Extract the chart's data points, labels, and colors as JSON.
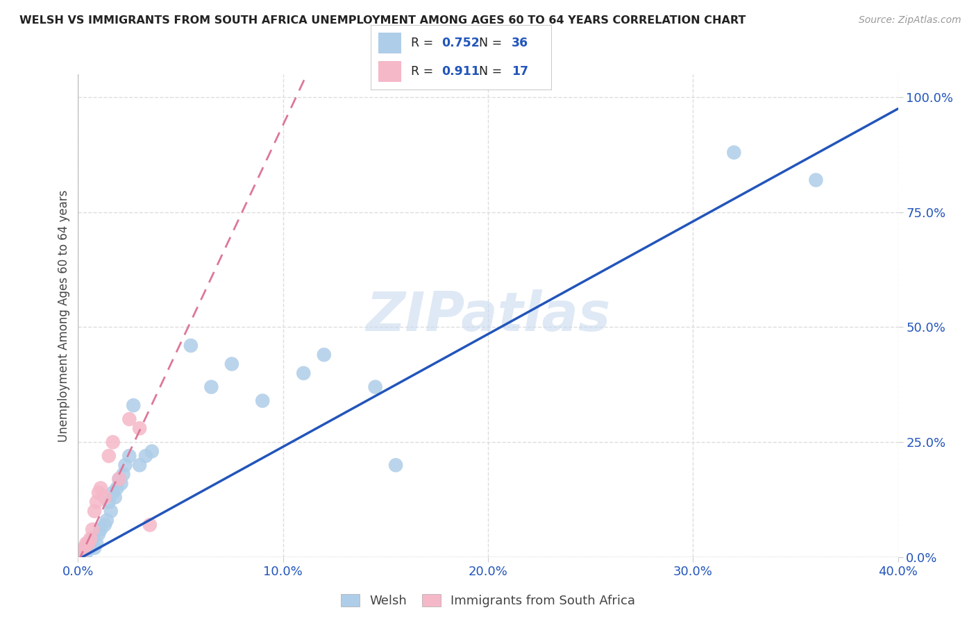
{
  "title": "WELSH VS IMMIGRANTS FROM SOUTH AFRICA UNEMPLOYMENT AMONG AGES 60 TO 64 YEARS CORRELATION CHART",
  "source": "Source: ZipAtlas.com",
  "ylabel": "Unemployment Among Ages 60 to 64 years",
  "xlim": [
    0.0,
    0.4
  ],
  "ylim": [
    0.0,
    1.05
  ],
  "xticklabels": [
    "0.0%",
    "10.0%",
    "20.0%",
    "30.0%",
    "40.0%"
  ],
  "yticklabels": [
    "0.0%",
    "25.0%",
    "50.0%",
    "75.0%",
    "100.0%"
  ],
  "ytick_vals": [
    0.0,
    0.25,
    0.5,
    0.75,
    1.0
  ],
  "xtick_vals": [
    0.0,
    0.1,
    0.2,
    0.3,
    0.4
  ],
  "welsh_R": "0.752",
  "welsh_N": "36",
  "sa_R": "0.911",
  "sa_N": "17",
  "welsh_color": "#aecde8",
  "sa_color": "#f5b8c8",
  "welsh_line_color": "#2255bb",
  "sa_line_color": "#dd7799",
  "watermark": "ZIPatlas",
  "welsh_points_x": [
    0.002,
    0.003,
    0.004,
    0.005,
    0.006,
    0.007,
    0.008,
    0.009,
    0.01,
    0.011,
    0.013,
    0.014,
    0.015,
    0.016,
    0.017,
    0.018,
    0.019,
    0.02,
    0.021,
    0.022,
    0.023,
    0.025,
    0.027,
    0.03,
    0.033,
    0.036,
    0.055,
    0.065,
    0.075,
    0.09,
    0.11,
    0.12,
    0.145,
    0.155,
    0.32,
    0.36
  ],
  "welsh_points_y": [
    0.01,
    0.02,
    0.01,
    0.03,
    0.02,
    0.04,
    0.02,
    0.03,
    0.05,
    0.06,
    0.07,
    0.08,
    0.12,
    0.1,
    0.14,
    0.13,
    0.15,
    0.17,
    0.16,
    0.18,
    0.2,
    0.22,
    0.33,
    0.2,
    0.22,
    0.23,
    0.46,
    0.37,
    0.42,
    0.34,
    0.4,
    0.44,
    0.37,
    0.2,
    0.88,
    0.82
  ],
  "sa_points_x": [
    0.002,
    0.003,
    0.004,
    0.005,
    0.006,
    0.007,
    0.008,
    0.009,
    0.01,
    0.011,
    0.013,
    0.015,
    0.017,
    0.02,
    0.025,
    0.03,
    0.035
  ],
  "sa_points_y": [
    0.01,
    0.02,
    0.03,
    0.03,
    0.04,
    0.06,
    0.1,
    0.12,
    0.14,
    0.15,
    0.13,
    0.22,
    0.25,
    0.17,
    0.3,
    0.28,
    0.07
  ],
  "background_color": "#ffffff",
  "grid_color": "#dddddd",
  "welsh_line_slope": 2.45,
  "welsh_line_intercept": -0.005,
  "sa_line_slope": 9.5,
  "sa_line_intercept": -0.01
}
